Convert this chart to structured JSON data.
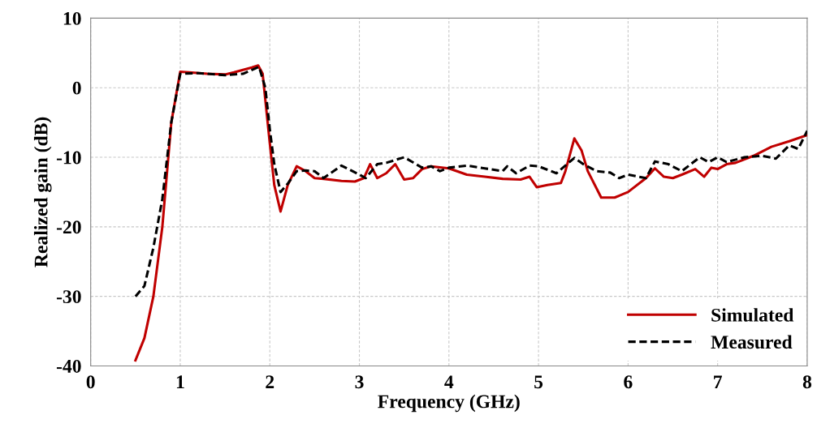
{
  "chart_data": {
    "type": "line",
    "xlabel": "Frequency (GHz)",
    "ylabel": "Realized gain (dB)",
    "xlim": [
      0,
      8
    ],
    "ylim": [
      -40,
      10
    ],
    "xticks": [
      0,
      1,
      2,
      3,
      4,
      5,
      6,
      7,
      8
    ],
    "yticks": [
      -40,
      -30,
      -20,
      -10,
      0,
      10
    ],
    "grid": true,
    "legend": "bottom right",
    "series": [
      {
        "name": "Simulated",
        "color": "#c00000",
        "line_style": "solid",
        "x": [
          0.5,
          0.6,
          0.7,
          0.8,
          0.9,
          1.0,
          1.1,
          1.3,
          1.5,
          1.6,
          1.8,
          1.87,
          1.92,
          2.0,
          2.05,
          2.12,
          2.2,
          2.3,
          2.4,
          2.5,
          2.6,
          2.8,
          2.95,
          3.05,
          3.12,
          3.2,
          3.3,
          3.4,
          3.5,
          3.6,
          3.7,
          3.8,
          4.0,
          4.2,
          4.4,
          4.6,
          4.8,
          4.9,
          4.98,
          5.1,
          5.25,
          5.3,
          5.4,
          5.48,
          5.55,
          5.7,
          5.85,
          6.0,
          6.2,
          6.3,
          6.4,
          6.5,
          6.6,
          6.75,
          6.85,
          6.93,
          7.0,
          7.1,
          7.2,
          7.4,
          7.6,
          7.8,
          8.0
        ],
        "values": [
          -39.2,
          -36,
          -30,
          -20,
          -5,
          2.3,
          2.2,
          2.0,
          1.9,
          2.2,
          2.9,
          3.2,
          2,
          -8,
          -14,
          -17.8,
          -14,
          -11.3,
          -12,
          -13,
          -13.1,
          -13.4,
          -13.5,
          -13,
          -11,
          -13,
          -12.3,
          -11,
          -13.2,
          -13,
          -11.7,
          -11.3,
          -11.6,
          -12.5,
          -12.8,
          -13.1,
          -13.2,
          -12.8,
          -14.3,
          -14,
          -13.7,
          -12,
          -7.3,
          -9,
          -12,
          -15.8,
          -15.8,
          -15,
          -13,
          -11.6,
          -12.8,
          -13,
          -12.5,
          -11.7,
          -12.8,
          -11.5,
          -11.7,
          -11,
          -10.8,
          -9.8,
          -8.5,
          -7.7,
          -6.8
        ]
      },
      {
        "name": "Measured",
        "color": "#000000",
        "line_style": "dashed",
        "x": [
          0.5,
          0.6,
          0.7,
          0.8,
          0.9,
          1.0,
          1.2,
          1.5,
          1.7,
          1.88,
          1.95,
          2.0,
          2.05,
          2.12,
          2.2,
          2.3,
          2.4,
          2.5,
          2.6,
          2.8,
          3.0,
          3.07,
          3.2,
          3.3,
          3.5,
          3.7,
          3.8,
          3.9,
          4.0,
          4.2,
          4.4,
          4.6,
          4.65,
          4.75,
          4.9,
          5.0,
          5.2,
          5.4,
          5.5,
          5.65,
          5.8,
          5.9,
          6.0,
          6.2,
          6.3,
          6.45,
          6.6,
          6.8,
          6.9,
          7.0,
          7.1,
          7.3,
          7.5,
          7.65,
          7.8,
          7.9,
          8.0
        ],
        "values": [
          -30,
          -28.5,
          -23,
          -16,
          -5,
          2,
          2.1,
          1.8,
          2.0,
          3,
          0,
          -6,
          -11,
          -15,
          -13.8,
          -12,
          -11.9,
          -12,
          -13,
          -11.2,
          -12.5,
          -13,
          -11,
          -10.8,
          -10,
          -11.5,
          -11.3,
          -12,
          -11.5,
          -11.2,
          -11.6,
          -12,
          -11.3,
          -12.3,
          -11.2,
          -11.3,
          -12.3,
          -10.1,
          -11,
          -12,
          -12.2,
          -13,
          -12.5,
          -13,
          -10.6,
          -11,
          -12,
          -10,
          -10.7,
          -10,
          -10.7,
          -10,
          -9.8,
          -10.2,
          -8.3,
          -8.8,
          -6.2
        ]
      }
    ]
  }
}
